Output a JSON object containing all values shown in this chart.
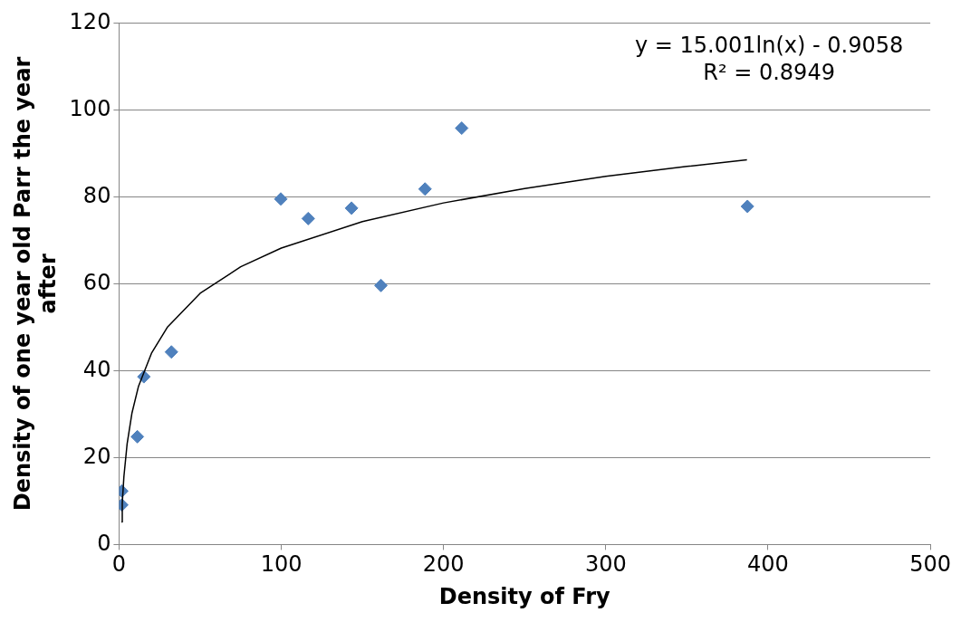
{
  "chart_data": {
    "type": "scatter",
    "xlabel": "Density of Fry",
    "ylabel": "Density of one year old Parr the year after",
    "xlim": [
      0,
      500
    ],
    "xticks": [
      0,
      100,
      200,
      300,
      400,
      500
    ],
    "ylim": [
      0,
      120
    ],
    "yticks": [
      0,
      20,
      40,
      60,
      80,
      100,
      120
    ],
    "grid": "y",
    "legend": false,
    "marker": "diamond",
    "annotations": [
      "y = 15.001ln(x) - 0.9058",
      "R² = 0.8949"
    ],
    "series": [
      {
        "type": "scatter",
        "color": "#4f81bd",
        "x": [
          1.7,
          1.7,
          11.3,
          15.3,
          32.3,
          99.7,
          116.6,
          143.3,
          161.4,
          188.6,
          211.2,
          387.3
        ],
        "values": [
          12.3,
          9.1,
          24.8,
          38.6,
          44.3,
          79.5,
          75.0,
          77.4,
          59.6,
          81.8,
          95.8,
          77.8
        ]
      },
      {
        "type": "line",
        "color": "#000000",
        "marker": "none",
        "x": [
          1.5,
          2,
          3,
          5,
          8,
          12,
          20,
          30,
          50,
          75,
          100,
          150,
          200,
          250,
          300,
          350,
          387
        ],
        "values": [
          5.2,
          9.5,
          15.6,
          23.2,
          30.3,
          36.4,
          44.0,
          50.1,
          57.8,
          63.9,
          68.2,
          74.3,
          78.6,
          81.9,
          84.7,
          87.0,
          88.5
        ]
      }
    ]
  }
}
